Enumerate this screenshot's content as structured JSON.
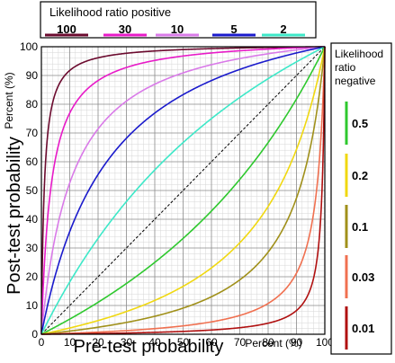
{
  "chart_data": {
    "type": "line",
    "xlabel": "Pre-test probability",
    "ylabel": "Post-test probability",
    "x_unit_label": "Percent (%)",
    "y_unit_label": "Percent (%)",
    "xlim": [
      0,
      100
    ],
    "ylim": [
      0,
      100
    ],
    "x_ticks": [
      0,
      10,
      20,
      30,
      40,
      50,
      60,
      70,
      80,
      90,
      100
    ],
    "y_ticks": [
      0,
      10,
      20,
      30,
      40,
      50,
      60,
      70,
      80,
      90,
      100
    ],
    "grid": true,
    "minor_grid": true,
    "diagonal_reference": true,
    "legend_positive": {
      "title": "Likelihood ratio positive",
      "placement": "top",
      "entries": [
        {
          "label": "100",
          "lr": 100,
          "color": "#6b0a2e"
        },
        {
          "label": "30",
          "lr": 30,
          "color": "#e81ac8"
        },
        {
          "label": "10",
          "lr": 10,
          "color": "#d97ae8"
        },
        {
          "label": "5",
          "lr": 5,
          "color": "#1a1acc"
        },
        {
          "label": "2",
          "lr": 2,
          "color": "#3de8c8"
        }
      ]
    },
    "legend_negative": {
      "title_lines": [
        "Likelihood",
        "ratio",
        "negative"
      ],
      "placement": "right",
      "entries": [
        {
          "label": "0.5",
          "lr": 0.5,
          "color": "#2ec82e"
        },
        {
          "label": "0.2",
          "lr": 0.2,
          "color": "#f0d810"
        },
        {
          "label": "0.1",
          "lr": 0.1,
          "color": "#a0901a"
        },
        {
          "label": "0.03",
          "lr": 0.03,
          "color": "#f07050"
        },
        {
          "label": "0.01",
          "lr": 0.01,
          "color": "#b01010"
        }
      ]
    }
  }
}
